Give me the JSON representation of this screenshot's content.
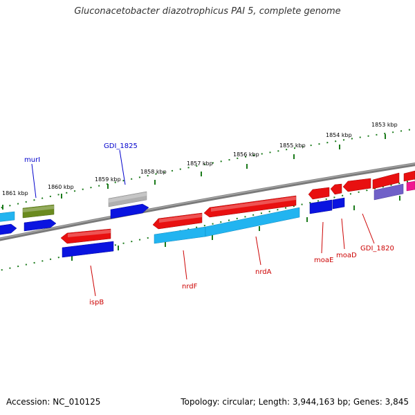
{
  "title": "Gluconacetobacter diazotrophicus PAI 5, complete genome",
  "footer": {
    "accession": "Accession: NC_010125",
    "topology": "Topology: circular; Length: 3,944,163 bp; Genes: 3,845"
  },
  "colors": {
    "backbone": "#808080",
    "tick_dots": "#1a7a1a",
    "red_gene": "#e81010",
    "blue_gene": "#0a14e0",
    "cyan_gene": "#22b4f0",
    "olive_gene": "#6a8a1e",
    "gray_gene": "#b0b0b0",
    "purple_gene": "#7060c8",
    "magenta_gene": "#f01890",
    "label_red": "#cc0000",
    "label_blue": "#0000cc"
  },
  "kbp_labels": [
    "1861 kbp",
    "1860 kbp",
    "1859 kbp",
    "1858 kbp",
    "1857 kbp",
    "1856 kbp",
    "1855 kbp",
    "1854 kbp",
    "1853 kbp"
  ],
  "gene_labels": [
    {
      "text": "murI",
      "color": "blue"
    },
    {
      "text": "GDI_1825",
      "color": "blue"
    },
    {
      "text": "ispB",
      "color": "red"
    },
    {
      "text": "nrdF",
      "color": "red"
    },
    {
      "text": "nrdA",
      "color": "red"
    },
    {
      "text": "moaE",
      "color": "red"
    },
    {
      "text": "moaD",
      "color": "red"
    },
    {
      "text": "GDI_1820",
      "color": "red"
    }
  ]
}
